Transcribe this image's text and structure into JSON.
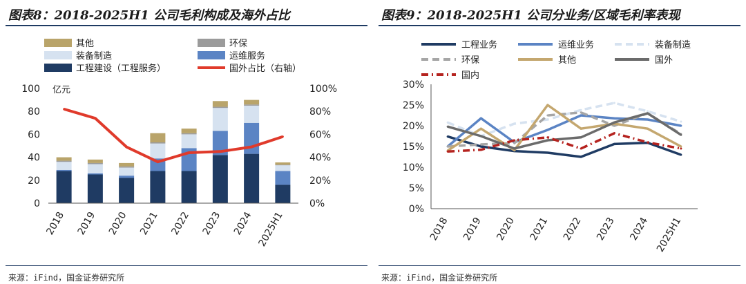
{
  "chart_data": [
    {
      "type": "bar",
      "stacked": true,
      "title": "图表8：2018-2025H1 公司毛利构成及海外占比",
      "source": "来源：iFind，国金证券研究所",
      "y_unit": "亿元",
      "ylim": [
        0,
        100
      ],
      "yticks": [
        "0",
        "20",
        "40",
        "60",
        "80",
        "100"
      ],
      "y2lim": [
        0,
        1
      ],
      "y2ticks": [
        "0%",
        "20%",
        "40%",
        "60%",
        "80%",
        "100%"
      ],
      "categories": [
        "2018",
        "2019",
        "2020",
        "2021",
        "2022",
        "2023",
        "2024",
        "2025H1"
      ],
      "series": [
        {
          "name": "工程建设（工程服务）",
          "color": "#1f3b63",
          "values": [
            28,
            25,
            22,
            28,
            28,
            42,
            43,
            16
          ]
        },
        {
          "name": "运维服务",
          "color": "#5b84c4",
          "values": [
            1,
            1,
            2,
            11,
            20,
            21,
            27,
            12
          ]
        },
        {
          "name": "装备制造",
          "color": "#d6e2f0",
          "values": [
            7,
            8,
            7,
            13,
            12,
            20,
            15,
            5
          ]
        },
        {
          "name": "环保",
          "color": "#9b9b9b",
          "values": [
            1,
            1,
            1,
            1,
            1,
            1,
            1,
            0.5
          ]
        },
        {
          "name": "其他",
          "color": "#b9a46a",
          "values": [
            3,
            3,
            3,
            8,
            4,
            5,
            4,
            2
          ]
        }
      ],
      "line": {
        "name": "国外占比（右轴）",
        "color": "#e03a2b",
        "values": [
          0.82,
          0.74,
          0.49,
          0.36,
          0.44,
          0.45,
          0.49,
          0.58
        ]
      },
      "legend": [
        {
          "label": "其他",
          "color": "#b9a46a",
          "kind": "box"
        },
        {
          "label": "环保",
          "color": "#9b9b9b",
          "kind": "box"
        },
        {
          "label": "装备制造",
          "color": "#d6e2f0",
          "kind": "box"
        },
        {
          "label": "运维服务",
          "color": "#5b84c4",
          "kind": "box"
        },
        {
          "label": "工程建设（工程服务）",
          "color": "#1f3b63",
          "kind": "box"
        },
        {
          "label": "国外占比（右轴）",
          "color": "#e03a2b",
          "kind": "line"
        }
      ]
    },
    {
      "type": "line",
      "title": "图表9：2018-2025H1 公司分业务/区域毛利率表现",
      "source": "来源：iFind，国金证券研究所",
      "ylim": [
        0,
        0.3
      ],
      "yticks": [
        "0%",
        "5%",
        "10%",
        "15%",
        "20%",
        "25%",
        "30%"
      ],
      "categories": [
        "2018",
        "2019",
        "2020",
        "2021",
        "2022",
        "2023",
        "2024",
        "2025H1"
      ],
      "series": [
        {
          "name": "工程业务",
          "color": "#1f3b63",
          "style": "solid",
          "values": [
            0.174,
            0.15,
            0.139,
            0.135,
            0.125,
            0.156,
            0.159,
            0.13
          ]
        },
        {
          "name": "运维业务",
          "color": "#5b84c4",
          "style": "solid",
          "values": [
            0.15,
            0.218,
            0.16,
            0.19,
            0.225,
            0.218,
            0.215,
            0.2
          ]
        },
        {
          "name": "装备制造",
          "color": "#d6e2f0",
          "style": "dash",
          "values": [
            0.208,
            0.175,
            0.205,
            0.215,
            0.238,
            0.255,
            0.235,
            0.21
          ]
        },
        {
          "name": "环保",
          "color": "#a6a6a6",
          "style": "dash",
          "values": [
            0.15,
            0.155,
            0.158,
            0.225,
            0.232,
            0.2,
            0.23,
            0.18
          ]
        },
        {
          "name": "其他",
          "color": "#c4a76f",
          "style": "solid",
          "values": [
            0.14,
            0.193,
            0.141,
            0.25,
            0.193,
            0.205,
            0.193,
            0.15
          ]
        },
        {
          "name": "国外",
          "color": "#6b6b6b",
          "style": "solid",
          "values": [
            0.198,
            0.175,
            0.145,
            0.165,
            0.172,
            0.208,
            0.23,
            0.178
          ]
        },
        {
          "name": "国内",
          "color": "#b5231f",
          "style": "dashdot",
          "values": [
            0.138,
            0.142,
            0.165,
            0.172,
            0.145,
            0.182,
            0.16,
            0.145
          ]
        }
      ]
    }
  ]
}
